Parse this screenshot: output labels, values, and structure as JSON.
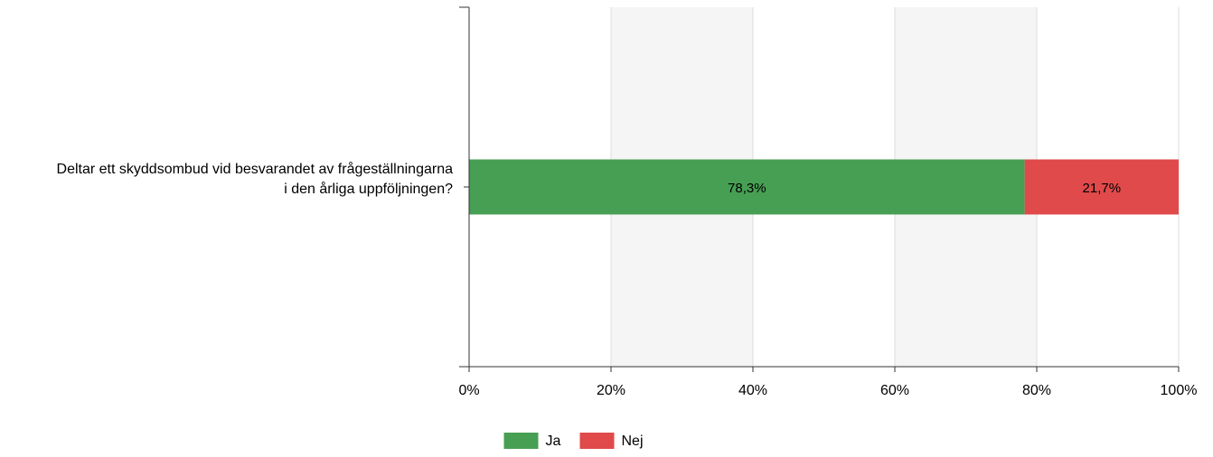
{
  "chart_data": {
    "type": "bar",
    "orientation": "horizontal",
    "stacked": true,
    "percent": true,
    "categories": [
      "Deltar ett skyddsombud vid besvarandet av frågeställningarna i den årliga uppföljningen?"
    ],
    "category_lines": [
      [
        "Deltar ett skyddsombud vid besvarandet av frågeställningarna",
        "i den årliga uppföljningen?"
      ]
    ],
    "series": [
      {
        "name": "Ja",
        "values": [
          78.3
        ],
        "labels": [
          "78,3%"
        ],
        "color": "#479f53"
      },
      {
        "name": "Nej",
        "values": [
          21.7
        ],
        "labels": [
          "21,7%"
        ],
        "color": "#e04a4a"
      }
    ],
    "xlim": [
      0,
      100
    ],
    "x_ticks": [
      0,
      20,
      40,
      60,
      80,
      100
    ],
    "x_tick_labels": [
      "0%",
      "20%",
      "40%",
      "60%",
      "80%",
      "100%"
    ],
    "grid": true,
    "legend": "bottom-center"
  },
  "colors": {
    "band": "#f5f5f5",
    "gridline": "#dddddd",
    "axis": "#333333",
    "text": "#000000"
  }
}
